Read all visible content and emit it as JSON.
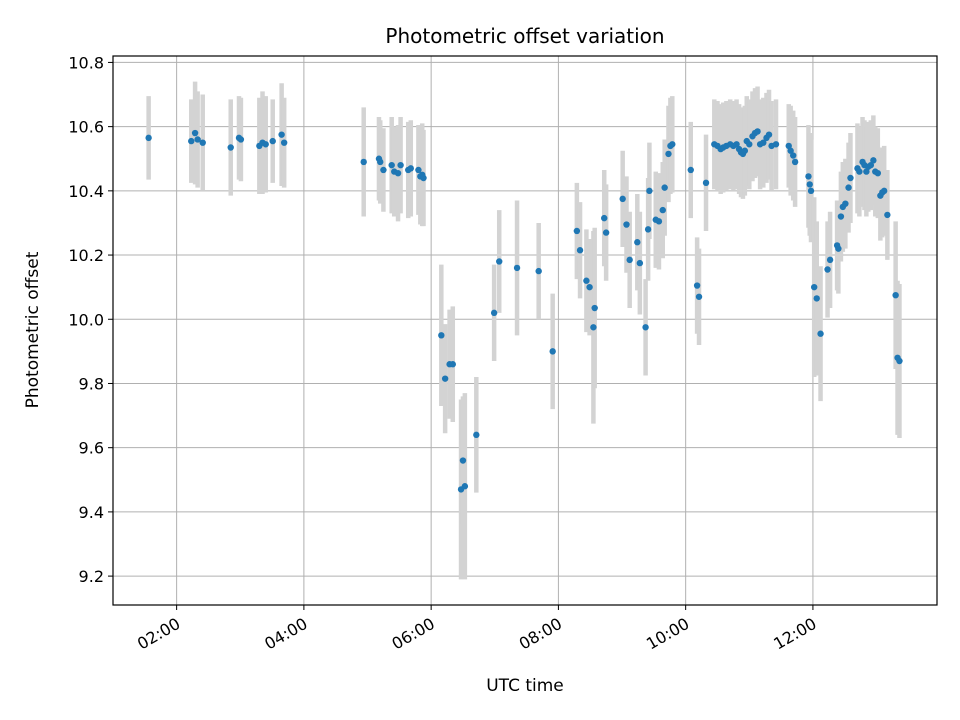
{
  "chart_data": {
    "type": "scatter",
    "title": "Photometric offset variation",
    "xlabel": "UTC time",
    "ylabel": "Photometric offset",
    "x_unit": "hours UTC",
    "xlim": [
      1.0,
      13.95
    ],
    "ylim": [
      9.11,
      10.82
    ],
    "grid": true,
    "x_ticks": [
      {
        "value": 2,
        "label": "02:00"
      },
      {
        "value": 4,
        "label": "04:00"
      },
      {
        "value": 6,
        "label": "06:00"
      },
      {
        "value": 8,
        "label": "08:00"
      },
      {
        "value": 10,
        "label": "10:00"
      },
      {
        "value": 12,
        "label": "12:00"
      }
    ],
    "y_ticks": [
      {
        "value": 9.2,
        "label": "9.2"
      },
      {
        "value": 9.4,
        "label": "9.4"
      },
      {
        "value": 9.6,
        "label": "9.6"
      },
      {
        "value": 9.8,
        "label": "9.8"
      },
      {
        "value": 10.0,
        "label": "10.0"
      },
      {
        "value": 10.2,
        "label": "10.2"
      },
      {
        "value": 10.4,
        "label": "10.4"
      },
      {
        "value": 10.6,
        "label": "10.6"
      },
      {
        "value": 10.8,
        "label": "10.8"
      }
    ],
    "colors": {
      "point": "#1f77b4",
      "errorbar": "#d3d3d3",
      "grid": "#b0b0b0"
    },
    "points": [
      [
        1.56,
        10.565,
        0.13
      ],
      [
        2.23,
        10.555,
        0.13
      ],
      [
        2.29,
        10.58,
        0.16
      ],
      [
        2.33,
        10.56,
        0.15
      ],
      [
        2.41,
        10.55,
        0.15
      ],
      [
        2.85,
        10.535,
        0.15
      ],
      [
        2.98,
        10.565,
        0.13
      ],
      [
        3.01,
        10.56,
        0.13
      ],
      [
        3.3,
        10.54,
        0.15
      ],
      [
        3.35,
        10.55,
        0.16
      ],
      [
        3.4,
        10.545,
        0.15
      ],
      [
        3.51,
        10.555,
        0.13
      ],
      [
        3.65,
        10.575,
        0.16
      ],
      [
        3.69,
        10.55,
        0.14
      ],
      [
        4.94,
        10.49,
        0.17
      ],
      [
        5.18,
        10.5,
        0.13
      ],
      [
        5.2,
        10.49,
        0.13
      ],
      [
        5.25,
        10.465,
        0.13
      ],
      [
        5.38,
        10.48,
        0.15
      ],
      [
        5.42,
        10.46,
        0.14
      ],
      [
        5.48,
        10.455,
        0.15
      ],
      [
        5.52,
        10.48,
        0.15
      ],
      [
        5.64,
        10.465,
        0.15
      ],
      [
        5.68,
        10.47,
        0.15
      ],
      [
        5.8,
        10.465,
        0.14
      ],
      [
        5.83,
        10.445,
        0.15
      ],
      [
        5.86,
        10.45,
        0.16
      ],
      [
        5.88,
        10.44,
        0.15
      ],
      [
        6.16,
        9.95,
        0.22
      ],
      [
        6.22,
        9.815,
        0.17
      ],
      [
        6.29,
        9.86,
        0.17
      ],
      [
        6.34,
        9.86,
        0.18
      ],
      [
        6.47,
        9.47,
        0.28
      ],
      [
        6.5,
        9.56,
        0.2
      ],
      [
        6.53,
        9.48,
        0.29
      ],
      [
        6.71,
        9.64,
        0.18
      ],
      [
        6.99,
        10.02,
        0.15
      ],
      [
        7.07,
        10.18,
        0.16
      ],
      [
        7.35,
        10.16,
        0.21
      ],
      [
        7.69,
        10.15,
        0.15
      ],
      [
        7.91,
        9.9,
        0.18
      ],
      [
        8.29,
        10.275,
        0.15
      ],
      [
        8.34,
        10.215,
        0.15
      ],
      [
        8.44,
        10.12,
        0.16
      ],
      [
        8.49,
        10.1,
        0.15
      ],
      [
        8.55,
        9.975,
        0.3
      ],
      [
        8.57,
        10.035,
        0.25
      ],
      [
        8.72,
        10.315,
        0.15
      ],
      [
        8.75,
        10.27,
        0.15
      ],
      [
        9.01,
        10.375,
        0.15
      ],
      [
        9.07,
        10.295,
        0.15
      ],
      [
        9.12,
        10.185,
        0.15
      ],
      [
        9.24,
        10.24,
        0.15
      ],
      [
        9.28,
        10.175,
        0.16
      ],
      [
        9.37,
        9.975,
        0.15
      ],
      [
        9.41,
        10.28,
        0.16
      ],
      [
        9.43,
        10.4,
        0.15
      ],
      [
        9.53,
        10.31,
        0.15
      ],
      [
        9.58,
        10.305,
        0.15
      ],
      [
        9.64,
        10.34,
        0.15
      ],
      [
        9.67,
        10.41,
        0.15
      ],
      [
        9.73,
        10.515,
        0.15
      ],
      [
        9.76,
        10.54,
        0.15
      ],
      [
        9.79,
        10.545,
        0.15
      ],
      [
        10.08,
        10.465,
        0.15
      ],
      [
        10.18,
        10.105,
        0.15
      ],
      [
        10.21,
        10.07,
        0.15
      ],
      [
        10.32,
        10.425,
        0.15
      ],
      [
        10.45,
        10.545,
        0.14
      ],
      [
        10.5,
        10.54,
        0.14
      ],
      [
        10.55,
        10.53,
        0.14
      ],
      [
        10.59,
        10.535,
        0.14
      ],
      [
        10.64,
        10.54,
        0.14
      ],
      [
        10.7,
        10.545,
        0.14
      ],
      [
        10.75,
        10.54,
        0.14
      ],
      [
        10.8,
        10.545,
        0.14
      ],
      [
        10.84,
        10.53,
        0.14
      ],
      [
        10.87,
        10.52,
        0.14
      ],
      [
        10.9,
        10.515,
        0.14
      ],
      [
        10.93,
        10.525,
        0.14
      ],
      [
        10.96,
        10.555,
        0.14
      ],
      [
        11.0,
        10.545,
        0.14
      ],
      [
        11.05,
        10.57,
        0.14
      ],
      [
        11.09,
        10.58,
        0.14
      ],
      [
        11.13,
        10.585,
        0.14
      ],
      [
        11.17,
        10.545,
        0.14
      ],
      [
        11.22,
        10.55,
        0.14
      ],
      [
        11.27,
        10.565,
        0.14
      ],
      [
        11.31,
        10.575,
        0.14
      ],
      [
        11.35,
        10.54,
        0.14
      ],
      [
        11.42,
        10.545,
        0.14
      ],
      [
        11.62,
        10.54,
        0.13
      ],
      [
        11.65,
        10.525,
        0.14
      ],
      [
        11.69,
        10.51,
        0.14
      ],
      [
        11.72,
        10.49,
        0.14
      ],
      [
        11.93,
        10.445,
        0.16
      ],
      [
        11.95,
        10.42,
        0.16
      ],
      [
        11.97,
        10.4,
        0.16
      ],
      [
        12.02,
        10.1,
        0.28
      ],
      [
        12.06,
        10.065,
        0.24
      ],
      [
        12.12,
        9.955,
        0.21
      ],
      [
        12.23,
        10.155,
        0.15
      ],
      [
        12.27,
        10.185,
        0.15
      ],
      [
        12.38,
        10.23,
        0.14
      ],
      [
        12.4,
        10.22,
        0.14
      ],
      [
        12.44,
        10.32,
        0.14
      ],
      [
        12.47,
        10.35,
        0.14
      ],
      [
        12.51,
        10.36,
        0.14
      ],
      [
        12.56,
        10.41,
        0.14
      ],
      [
        12.59,
        10.44,
        0.14
      ],
      [
        12.7,
        10.47,
        0.14
      ],
      [
        12.73,
        10.46,
        0.14
      ],
      [
        12.78,
        10.49,
        0.14
      ],
      [
        12.81,
        10.48,
        0.14
      ],
      [
        12.84,
        10.46,
        0.14
      ],
      [
        12.87,
        10.475,
        0.14
      ],
      [
        12.91,
        10.48,
        0.14
      ],
      [
        12.95,
        10.495,
        0.14
      ],
      [
        12.98,
        10.46,
        0.14
      ],
      [
        13.02,
        10.455,
        0.14
      ],
      [
        13.06,
        10.385,
        0.14
      ],
      [
        13.09,
        10.395,
        0.14
      ],
      [
        13.12,
        10.4,
        0.14
      ],
      [
        13.17,
        10.325,
        0.14
      ],
      [
        13.3,
        10.075,
        0.23
      ],
      [
        13.33,
        9.88,
        0.24
      ],
      [
        13.36,
        9.87,
        0.24
      ]
    ]
  }
}
